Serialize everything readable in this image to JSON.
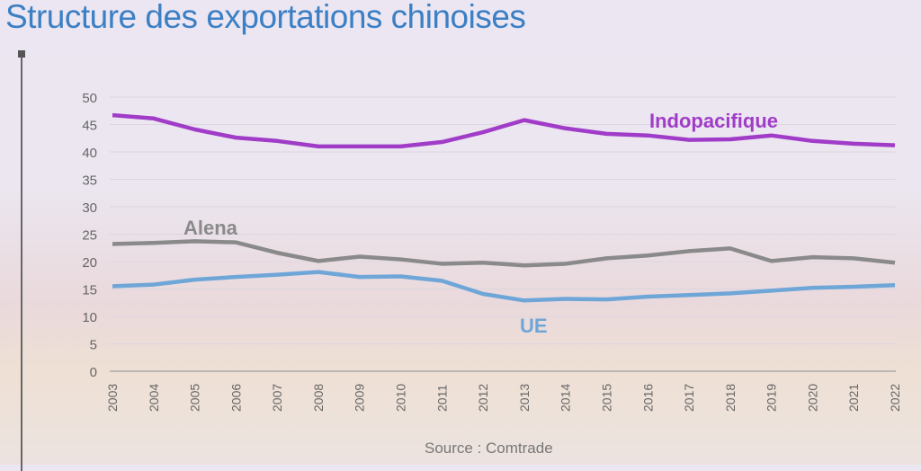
{
  "title": "Structure des exportations chinoises",
  "source": "Source : Comtrade",
  "chart_data": {
    "type": "line",
    "title": "Structure des exportations chinoises",
    "xlabel": "",
    "ylabel": "",
    "ylim": [
      0,
      50
    ],
    "yticks": [
      "0",
      "5",
      "10",
      "15",
      "20",
      "25",
      "30",
      "35",
      "40",
      "45",
      "50"
    ],
    "grid": true,
    "x": [
      "2003",
      "2004",
      "2005",
      "2006",
      "2007",
      "2008",
      "2009",
      "2010",
      "2011",
      "2012",
      "2013",
      "2014",
      "2015",
      "2016",
      "2017",
      "2018",
      "2019",
      "2020",
      "2021",
      "2022"
    ],
    "series": [
      {
        "name": "Indopacifique",
        "color": "#a03cc8",
        "values": [
          46.7,
          46.1,
          44.1,
          42.6,
          42.0,
          41.0,
          41.0,
          41.0,
          41.8,
          43.6,
          45.8,
          44.3,
          43.3,
          43.0,
          42.2,
          42.3,
          43.0,
          42.0,
          41.5,
          41.2
        ]
      },
      {
        "name": "Alena",
        "color": "#8a8a8a",
        "values": [
          23.2,
          23.4,
          23.7,
          23.5,
          21.6,
          20.1,
          20.9,
          20.4,
          19.6,
          19.8,
          19.3,
          19.6,
          20.6,
          21.1,
          21.9,
          22.4,
          20.1,
          20.8,
          20.6,
          19.8
        ]
      },
      {
        "name": "UE",
        "color": "#6fa6d8",
        "values": [
          15.5,
          15.8,
          16.7,
          17.2,
          17.6,
          18.1,
          17.2,
          17.3,
          16.5,
          14.1,
          12.9,
          13.2,
          13.1,
          13.6,
          13.9,
          14.2,
          14.7,
          15.2,
          15.4,
          15.7
        ]
      }
    ]
  }
}
